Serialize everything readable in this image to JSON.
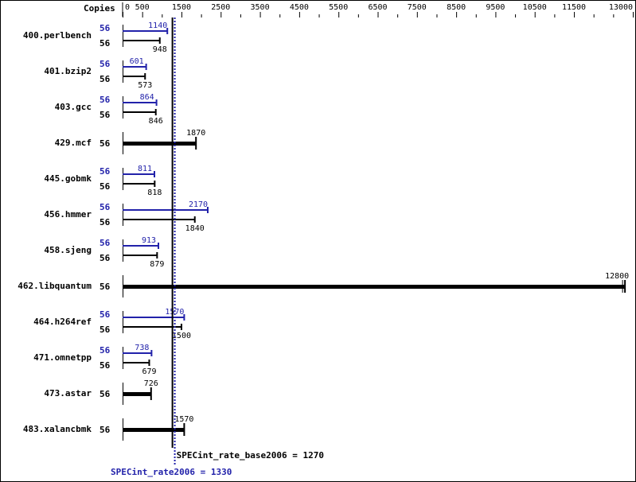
{
  "chart_data": {
    "type": "bar",
    "orientation": "horizontal",
    "copies_header": "Copies",
    "xlim": [
      0,
      13000
    ],
    "ticks": [
      0,
      500,
      1500,
      2500,
      3500,
      4500,
      5500,
      6500,
      7500,
      8500,
      9500,
      10500,
      11500,
      13000
    ],
    "minor_ticks": [
      1000,
      2000,
      3000,
      4000,
      5000,
      6000,
      7000,
      8000,
      9000,
      10000,
      11000,
      12000,
      12500
    ],
    "benchmarks": [
      {
        "name": "400.perlbench",
        "peak_copies": "56",
        "peak": 1140,
        "base_copies": "56",
        "base": 948
      },
      {
        "name": "401.bzip2",
        "peak_copies": "56",
        "peak": 601,
        "base_copies": "56",
        "base": 573
      },
      {
        "name": "403.gcc",
        "peak_copies": "56",
        "peak": 864,
        "base_copies": "56",
        "base": 846
      },
      {
        "name": "429.mcf",
        "peak_copies": null,
        "peak": null,
        "base_copies": "56",
        "base": 1870
      },
      {
        "name": "445.gobmk",
        "peak_copies": "56",
        "peak": 811,
        "base_copies": "56",
        "base": 818
      },
      {
        "name": "456.hmmer",
        "peak_copies": "56",
        "peak": 2170,
        "base_copies": "56",
        "base": 1840
      },
      {
        "name": "458.sjeng",
        "peak_copies": "56",
        "peak": 913,
        "base_copies": "56",
        "base": 879
      },
      {
        "name": "462.libquantum",
        "peak_copies": null,
        "peak": null,
        "base_copies": "56",
        "base": 12800
      },
      {
        "name": "464.h264ref",
        "peak_copies": "56",
        "peak": 1570,
        "base_copies": "56",
        "base": 1500
      },
      {
        "name": "471.omnetpp",
        "peak_copies": "56",
        "peak": 738,
        "base_copies": "56",
        "base": 679
      },
      {
        "name": "473.astar",
        "peak_copies": null,
        "peak": null,
        "base_copies": "56",
        "base": 726
      },
      {
        "name": "483.xalancbmk",
        "peak_copies": null,
        "peak": null,
        "base_copies": "56",
        "base": 1570
      }
    ],
    "base_summary": {
      "label": "SPECint_rate_base2006 = 1270",
      "value": 1270
    },
    "peak_summary": {
      "label": "SPECint_rate2006 = 1330",
      "value": 1330
    },
    "colors": {
      "base": "#000000",
      "peak": "#2222aa"
    }
  }
}
